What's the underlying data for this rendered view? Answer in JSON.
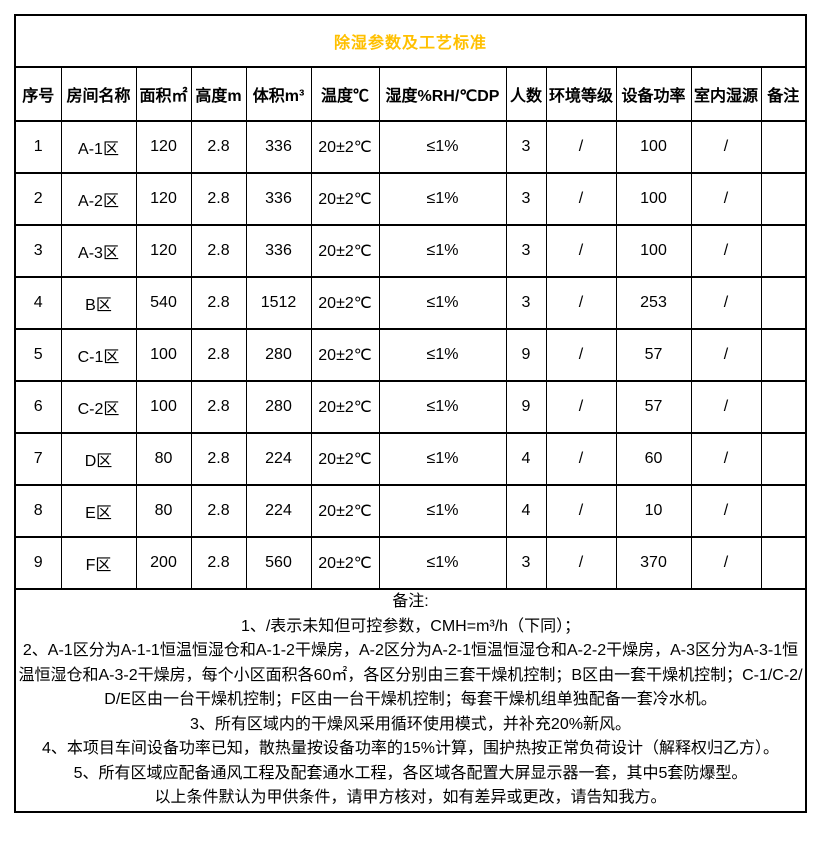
{
  "title": "除湿参数及工艺标准",
  "colors": {
    "title_text": "#FFC000",
    "grid_line": "#000000",
    "body_text": "#000000",
    "background": "#ffffff"
  },
  "table": {
    "columns": [
      "序号",
      "房间名称",
      "面积㎡",
      "高度m",
      "体积m³",
      "温度℃",
      "湿度%RH/℃DP",
      "人数",
      "环境等级",
      "设备功率",
      "室内湿源",
      "备注"
    ],
    "rows": [
      [
        "1",
        "A-1区",
        "120",
        "2.8",
        "336",
        "20±2℃",
        "≤1%",
        "3",
        "/",
        "100",
        "/",
        ""
      ],
      [
        "2",
        "A-2区",
        "120",
        "2.8",
        "336",
        "20±2℃",
        "≤1%",
        "3",
        "/",
        "100",
        "/",
        ""
      ],
      [
        "3",
        "A-3区",
        "120",
        "2.8",
        "336",
        "20±2℃",
        "≤1%",
        "3",
        "/",
        "100",
        "/",
        ""
      ],
      [
        "4",
        "B区",
        "540",
        "2.8",
        "1512",
        "20±2℃",
        "≤1%",
        "3",
        "/",
        "253",
        "/",
        ""
      ],
      [
        "5",
        "C-1区",
        "100",
        "2.8",
        "280",
        "20±2℃",
        "≤1%",
        "9",
        "/",
        "57",
        "/",
        ""
      ],
      [
        "6",
        "C-2区",
        "100",
        "2.8",
        "280",
        "20±2℃",
        "≤1%",
        "9",
        "/",
        "57",
        "/",
        ""
      ],
      [
        "7",
        "D区",
        "80",
        "2.8",
        "224",
        "20±2℃",
        "≤1%",
        "4",
        "/",
        "60",
        "/",
        ""
      ],
      [
        "8",
        "E区",
        "80",
        "2.8",
        "224",
        "20±2℃",
        "≤1%",
        "4",
        "/",
        "10",
        "/",
        ""
      ],
      [
        "9",
        "F区",
        "200",
        "2.8",
        "560",
        "20±2℃",
        "≤1%",
        "3",
        "/",
        "370",
        "/",
        ""
      ]
    ]
  },
  "notes": {
    "heading": "备注:",
    "lines": [
      "1、/表示未知但可控参数，CMH=m³/h（下同）；",
      "2、A-1区分为A-1-1恒温恒湿仓和A-1-2干燥房，A-2区分为A-2-1恒温恒湿仓和A-2-2干燥房，A-3区分为A-3-1恒温恒湿仓和A-3-2干燥房，每个小区面积各60㎡，各区分别由三套干燥机控制；B区由一套干燥机控制；C-1/C-2/D/E区由一台干燥机控制；F区由一台干燥机控制；每套干燥机组单独配备一套冷水机。",
      "3、所有区域内的干燥风采用循环使用模式，并补充20%新风。",
      "4、本项目车间设备功率已知，散热量按设备功率的15%计算，围护热按正常负荷设计（解释权归乙方）。",
      "5、所有区域应配备通风工程及配套通水工程，各区域各配置大屏显示器一套，其中5套防爆型。",
      "以上条件默认为甲供条件，请甲方核对，如有差异或更改，请告知我方。"
    ]
  }
}
